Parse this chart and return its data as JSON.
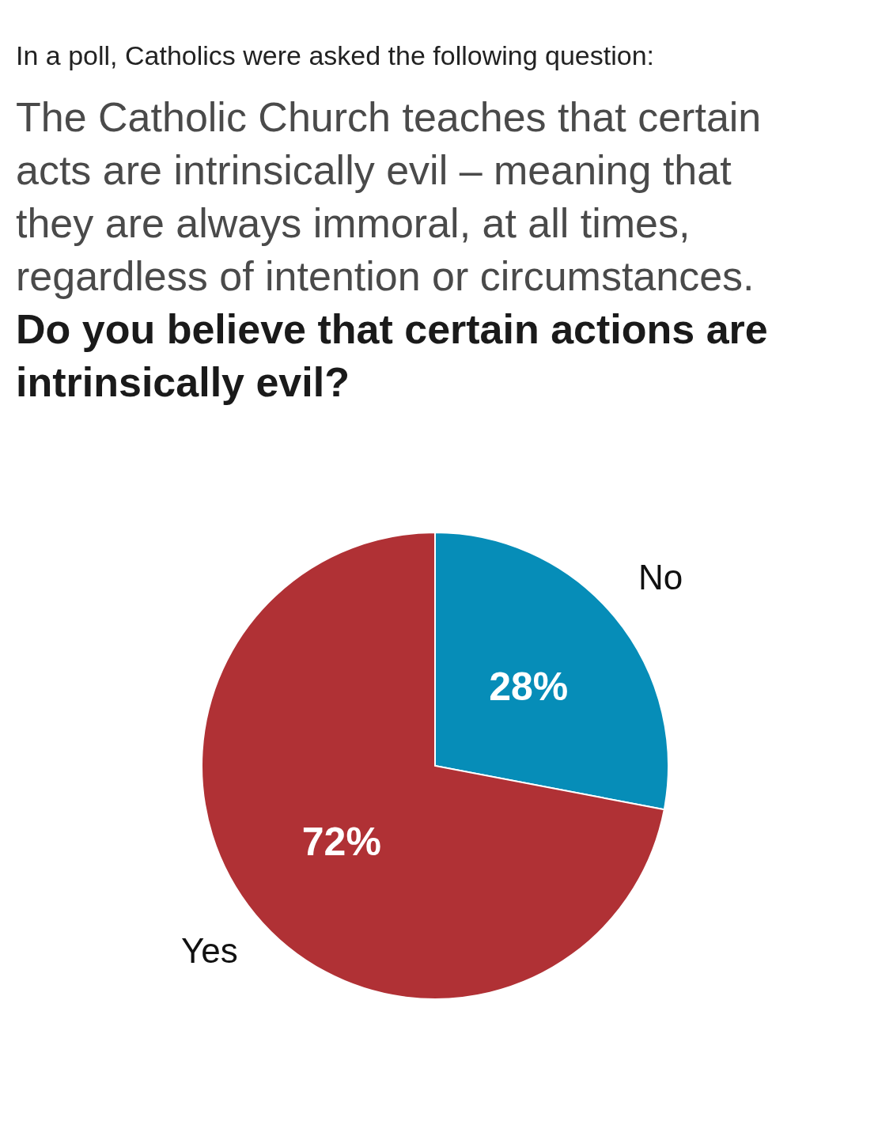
{
  "chart_data": {
    "type": "pie",
    "subtitle": "In a poll, Catholics were asked the following question:",
    "annotations": [
      "The Catholic Church teaches that certain\nacts are intrinsically evil – meaning that\nthey are always immoral, at all times,\nregardless of intention or circumstances."
    ],
    "title": "Do you believe that certain actions are\nintrinsically evil?",
    "categories": [
      "No",
      "Yes"
    ],
    "values": [
      28,
      72
    ],
    "colors": [
      "#068db8",
      "#b03135"
    ],
    "data_labels": true,
    "value_labels": [
      "28%",
      "72%"
    ]
  }
}
